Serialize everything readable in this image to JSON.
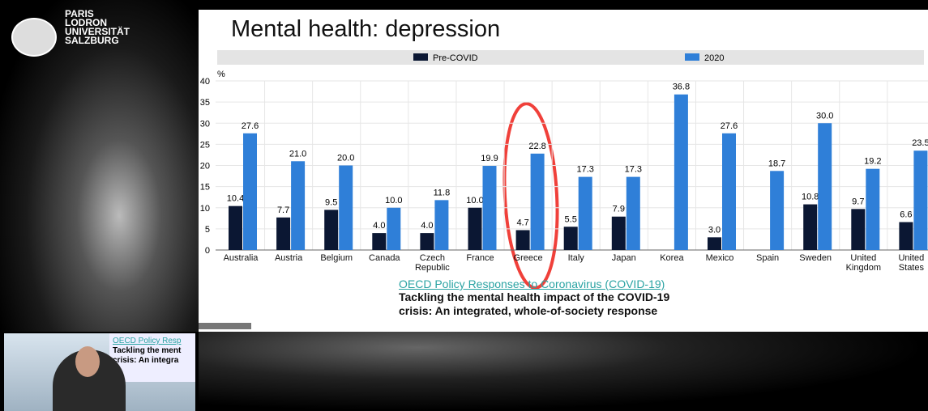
{
  "logo": {
    "lines": [
      "PARIS",
      "LODRON",
      "UNIVERSITÄT",
      "SALZBURG"
    ]
  },
  "slide": {
    "title": "Mental health: depression",
    "link": "OECD Policy Responses to Coronavirus (COVID-19)",
    "caption": [
      "Tackling the mental health impact of the COVID-19",
      "crisis: An integrated, whole-of-society response"
    ]
  },
  "inset": {
    "lines": [
      "OECD Policy Resp",
      "Tackling the ment",
      "crisis: An integra"
    ]
  },
  "chart_data": {
    "type": "bar",
    "y_unit_label": "%",
    "categories": [
      "Australia",
      "Austria",
      "Belgium",
      "Canada",
      "Czech Republic",
      "France",
      "Greece",
      "Italy",
      "Japan",
      "Korea",
      "Mexico",
      "Spain",
      "Sweden",
      "United Kingdom",
      "United States"
    ],
    "series": [
      {
        "name": "Pre-COVID",
        "color": "#0b1733",
        "values": [
          10.4,
          7.7,
          9.5,
          4.0,
          4.0,
          10.0,
          4.7,
          5.5,
          7.9,
          null,
          3.0,
          null,
          10.8,
          9.7,
          6.6
        ],
        "value_labels": [
          "10.4",
          "7.7",
          "9.5",
          "4.0",
          "4.0",
          "10.0",
          "4.7",
          "5.5",
          "7.9",
          null,
          "3.0",
          null,
          "10.8",
          "9.7",
          "6.6"
        ]
      },
      {
        "name": "2020",
        "color": "#2f7fd8",
        "values": [
          27.6,
          21.0,
          20.0,
          10.0,
          11.8,
          19.9,
          22.8,
          17.3,
          17.3,
          36.8,
          27.6,
          18.7,
          30.0,
          19.2,
          23.5
        ],
        "value_labels": [
          "27.6",
          "21.0",
          "20.0",
          "10.0",
          "11.8",
          "19.9",
          "22.8",
          "17.3",
          "17.3",
          "36.8",
          "27.6",
          "18.7",
          "30.0",
          "19.2",
          "23.5"
        ]
      }
    ],
    "ylim": [
      0,
      40
    ],
    "yticks": [
      0,
      5,
      10,
      15,
      20,
      25,
      30,
      35,
      40
    ],
    "grid": true
  }
}
